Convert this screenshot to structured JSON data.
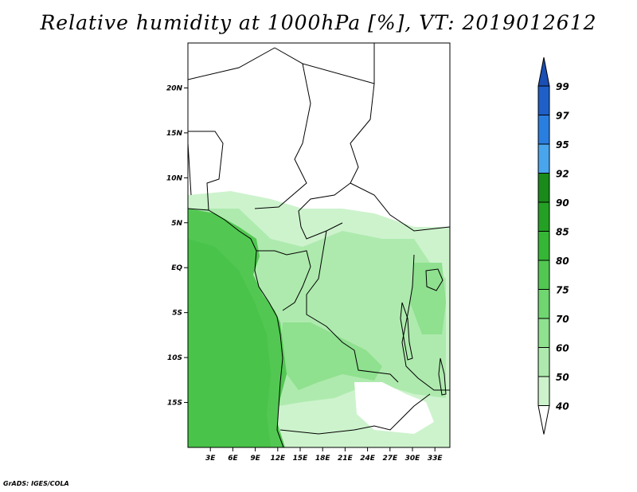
{
  "title": "Relative humidity at 1000hPa [%], VT: 2019012612",
  "credit": "GrADS: IGES/COLA",
  "map": {
    "lat_range": [
      -20,
      25
    ],
    "lon_range": [
      0,
      35
    ],
    "lat_ticks": [
      "20N",
      "15N",
      "10N",
      "5N",
      "EQ",
      "5S",
      "10S",
      "15S"
    ],
    "lon_ticks": [
      "3E",
      "6E",
      "9E",
      "12E",
      "15E",
      "18E",
      "21E",
      "24E",
      "27E",
      "30E",
      "33E"
    ]
  },
  "colorbar": {
    "levels": [
      "99",
      "97",
      "95",
      "92",
      "90",
      "85",
      "80",
      "75",
      "70",
      "60",
      "50",
      "40"
    ],
    "colors": [
      "#1e5fc8",
      "#2a7ee0",
      "#4aa6ec",
      "#1a8a1a",
      "#24a024",
      "#35b735",
      "#52c852",
      "#70d670",
      "#8fe08f",
      "#aeeaae",
      "#cdf3cd",
      "#ecfcec"
    ],
    "top_arrow_color": "#1a4fb4"
  },
  "colors": {
    "ocean_humid": "#52c852",
    "land_mid": "#9de59d",
    "land_light": "#cdf3cd",
    "dry": "#ffffff",
    "border": "#000000"
  }
}
